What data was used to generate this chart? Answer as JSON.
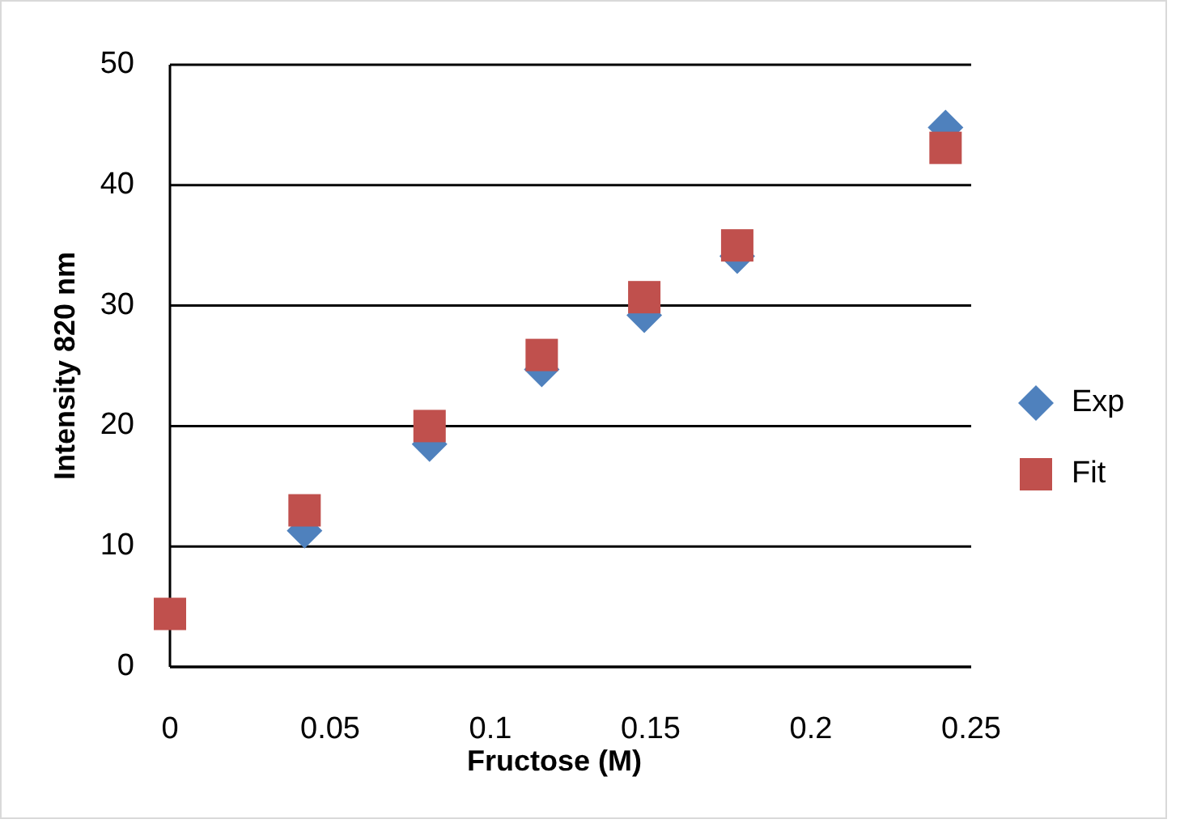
{
  "chart_data": {
    "type": "scatter",
    "xlabel": "Fructose (M)",
    "ylabel": "Intensity 820 nm",
    "x": [
      0,
      0.042,
      0.081,
      0.116,
      0.148,
      0.177,
      0.242
    ],
    "series": [
      {
        "name": "Exp",
        "color": "#4f81bd",
        "marker": "diamond",
        "values": [
          null,
          11.3,
          18.5,
          24.7,
          29.2,
          34.1,
          44.8
        ]
      },
      {
        "name": "Fit",
        "color": "#c0504d",
        "marker": "square",
        "values": [
          4.4,
          13.0,
          20.0,
          25.9,
          30.7,
          35.0,
          43.1
        ]
      }
    ],
    "xlim": [
      0,
      0.25
    ],
    "xticks": [
      0,
      0.05,
      0.1,
      0.15,
      0.2,
      0.25
    ],
    "ylim": [
      0,
      50
    ],
    "yticks": [
      0,
      10,
      20,
      30,
      40,
      50
    ],
    "grid": "y",
    "legend": "right"
  }
}
